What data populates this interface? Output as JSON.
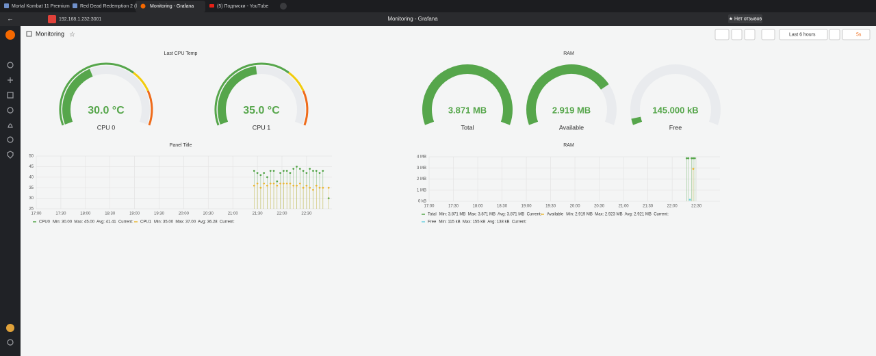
{
  "browser": {
    "tabs": [
      "Mortal Kombat 11 Premium",
      "Red Dead Redemption 2 (l",
      "Monitoring - Grafana",
      "(5) Подписки - YouTube"
    ],
    "url": "192.168.1.232:3001",
    "window_title": "Monitoring - Grafana",
    "review_button": "★ Нет отзывов"
  },
  "dashboard": {
    "title": "Monitoring",
    "time_range": "Last 6 hours",
    "refresh": "5s"
  },
  "gauge_panels": [
    {
      "title": "Last CPU Temp",
      "min": 0,
      "max": 75,
      "color": "#56a64b",
      "thresholds": [
        {
          "value": 0,
          "color": "#56a64b"
        },
        {
          "value": 50,
          "color": "#f2cc0c"
        },
        {
          "value": 60,
          "color": "#ef6b1a"
        }
      ],
      "gauges": [
        {
          "name": "CPU 0",
          "value": 30,
          "value_label": "30.0 °C"
        },
        {
          "name": "CPU 1",
          "value": 35,
          "value_label": "35.0 °C"
        }
      ]
    },
    {
      "title": "RAM",
      "min": 0,
      "max": 3.871,
      "color": "#56a64b",
      "gauges": [
        {
          "name": "Total",
          "value": 3.871,
          "value_label": "3.871 MB"
        },
        {
          "name": "Available",
          "value": 2.919,
          "value_label": "2.919 MB"
        },
        {
          "name": "Free",
          "value": 0.145,
          "value_label": "145.000 kB"
        }
      ]
    }
  ],
  "chart_data": [
    {
      "type": "scatter",
      "title": "Panel Title",
      "x": [
        "21:26",
        "21:30",
        "21:34",
        "21:38",
        "21:42",
        "21:46",
        "21:50",
        "21:54",
        "21:58",
        "22:02",
        "22:06",
        "22:10",
        "22:14",
        "22:18",
        "22:22",
        "22:26",
        "22:30",
        "22:34",
        "22:38",
        "22:42",
        "22:46",
        "22:50",
        "22:57"
      ],
      "series": [
        {
          "name": "CPU0",
          "color": "#56a64b",
          "legend_stats": "Min: 30.00  Max: 45.00  Avg: 41.41  Current:",
          "values": [
            43,
            42,
            41,
            42,
            40,
            43,
            43,
            38,
            42,
            43,
            43,
            42,
            44,
            45,
            44,
            43,
            42,
            44,
            43,
            43,
            42,
            43,
            30
          ]
        },
        {
          "name": "CPU1",
          "color": "#eab839",
          "legend_stats": "Min: 35.00  Max: 37.00  Avg: 36.28  Current:",
          "values": [
            36,
            37,
            35,
            37,
            36,
            37,
            37,
            36,
            37,
            37,
            37,
            37,
            36,
            36,
            37,
            35,
            36,
            35,
            34,
            36,
            35,
            35,
            35
          ]
        }
      ],
      "xlim": [
        "17:00",
        "23:01"
      ],
      "xticks": [
        "17:00",
        "17:30",
        "18:00",
        "18:30",
        "19:00",
        "19:30",
        "20:00",
        "20:30",
        "21:00",
        "21:30",
        "22:00",
        "22:30"
      ],
      "ylim": [
        25,
        50
      ],
      "yticks": [
        25,
        30,
        35,
        40,
        45,
        50
      ],
      "grid": true
    },
    {
      "type": "scatter",
      "title": "RAM",
      "x": [
        "22:18",
        "22:20",
        "22:22",
        "22:24",
        "22:26",
        "22:28"
      ],
      "series": [
        {
          "name": "Total",
          "color": "#56a64b",
          "legend_stats": "Min: 3.871 MB  Max: 3.871 MB  Avg: 3.871 MB  Current:",
          "values": [
            3.871,
            3.871,
            null,
            3.871,
            3.871,
            3.871
          ]
        },
        {
          "name": "Available",
          "color": "#eab839",
          "legend_stats": "Min: 2.919 MB  Max: 2.923 MB  Avg: 2.921 MB  Current:",
          "values": [
            null,
            null,
            null,
            null,
            2.919,
            null
          ]
        },
        {
          "name": "Free",
          "color": "#6ed0e0",
          "legend_stats": "Min: 115 kB  Max: 155 kB  Avg: 138 kB  Current:",
          "values": [
            null,
            null,
            0.145,
            null,
            null,
            null
          ]
        }
      ],
      "xlim": [
        "17:00",
        "22:59"
      ],
      "xticks": [
        "17:00",
        "17:30",
        "18:00",
        "18:30",
        "19:00",
        "19:30",
        "20:00",
        "20:30",
        "21:00",
        "21:30",
        "22:00",
        "22:30"
      ],
      "ylim": [
        0,
        4
      ],
      "yticks": [
        {
          "value": 0,
          "label": "0 kB"
        },
        {
          "value": 1,
          "label": "1 MB"
        },
        {
          "value": 2,
          "label": "2 MB"
        },
        {
          "value": 3,
          "label": "3 MB"
        },
        {
          "value": 4,
          "label": "4 MB"
        }
      ],
      "grid": true
    }
  ]
}
